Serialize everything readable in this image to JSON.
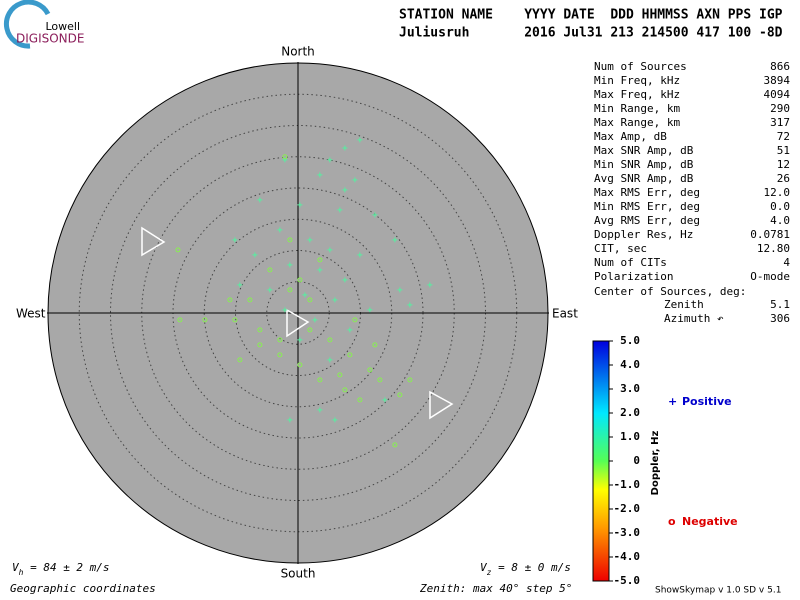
{
  "logo": {
    "top": "Lowell",
    "bottom": "DIGISONDE"
  },
  "header": {
    "line1": "STATION NAME    YYYY DATE  DDD HHMMSS AXN PPS IGP",
    "line2": "Juliusruh       2016 Jul31 213 214500 417 100 -8D"
  },
  "stats": {
    "rows": [
      [
        "Num of Sources",
        "866"
      ],
      [
        "Min Freq, kHz",
        "3894"
      ],
      [
        "Max Freq, kHz",
        "4094"
      ],
      [
        "Min Range, km",
        "290"
      ],
      [
        "Max Range, km",
        "317"
      ],
      [
        "Max Amp, dB",
        "72"
      ],
      [
        "Max SNR Amp, dB",
        "51"
      ],
      [
        "Min SNR Amp, dB",
        "12"
      ],
      [
        "Avg SNR Amp, dB",
        "26"
      ],
      [
        "Max RMS Err, deg",
        "12.0"
      ],
      [
        "Min RMS Err, deg",
        "0.0"
      ],
      [
        "Avg RMS Err, deg",
        "4.0"
      ],
      [
        "Doppler Res, Hz",
        "0.0781"
      ],
      [
        "CIT, sec",
        "12.80"
      ],
      [
        "Num of CITs",
        "4"
      ],
      [
        "Polarization",
        "O-mode"
      ]
    ],
    "center_title": "Center of Sources, deg:",
    "zenith_label": "Zenith",
    "zenith": "5.1",
    "azimuth_label": "Azimuth ↶",
    "azimuth": "306"
  },
  "colorbar": {
    "label": "Doppler, Hz",
    "lim": [
      -5,
      5
    ],
    "ticks": [
      {
        "value": 5,
        "label": "5.0"
      },
      {
        "value": 4,
        "label": "4.0"
      },
      {
        "value": 3,
        "label": "3.0"
      },
      {
        "value": 2,
        "label": "2.0"
      },
      {
        "value": 1,
        "label": "1.0"
      },
      0,
      {
        "value": -1,
        "label": "-1.0"
      },
      {
        "value": -2,
        "label": "-2.0"
      },
      {
        "value": -3,
        "label": "-3.0"
      },
      {
        "value": -4,
        "label": "-4.0"
      },
      {
        "value": -5,
        "label": "-5.0"
      }
    ]
  },
  "footer": {
    "vh": {
      "symbol": "V",
      "sub": "h",
      "text": " = 84 ± 2 m/s"
    },
    "vz": {
      "symbol": "V",
      "sub": "z",
      "text": " = 8 ± 0 m/s"
    },
    "coords": "Geographic coordinates",
    "zenith": "Zenith: max 40°  step 5°",
    "version": "ShowSkymap v 1.0   SD v 5.1"
  },
  "chart_data": {
    "type": "scatter",
    "directions": {
      "north": "North",
      "south": "South",
      "east": "East",
      "west": "West"
    },
    "rlim": [
      0,
      40
    ],
    "rticks": [
      5,
      10,
      15,
      20,
      25,
      30,
      35,
      40
    ],
    "series": [
      {
        "name": "Positive",
        "marker": "+",
        "legend_color": "#0000cc",
        "color": "#55f0a0",
        "x": [
          7.5,
          5.1,
          3.5,
          9.1,
          0.3,
          6.7,
          12.3,
          -2.9,
          1.9,
          5.1,
          9.9,
          -6.9,
          -1.3,
          3.5,
          7.5,
          16.3,
          21.1,
          -9.3,
          -4.5,
          1.1,
          5.9,
          11.5,
          17.9,
          -2.1,
          2.7,
          8.3,
          0.3,
          5.1,
          -1.3,
          3.5,
          5.9,
          13.9,
          9.9,
          -2.1,
          -6.1,
          -10.1,
          15.5,
          7.5
        ],
        "values": [
          26.4,
          24.5,
          22.1,
          21.3,
          17.3,
          16.5,
          15.7,
          13.3,
          11.7,
          10.1,
          9.3,
          9.3,
          7.7,
          6.9,
          5.3,
          3.7,
          4.5,
          4.5,
          3.7,
          2.9,
          2.1,
          0.5,
          1.3,
          0.5,
          -1.1,
          -2.7,
          -4.3,
          -7.5,
          -17.1,
          -15.5,
          -17.1,
          -13.9,
          27.7,
          24.5,
          18.1,
          11.7,
          11.7,
          19.7
        ]
      },
      {
        "name": "Negative",
        "marker": "o",
        "legend_color": "#dd0000",
        "color": "#88f050",
        "x": [
          -2.9,
          -6.1,
          -10.1,
          -14.9,
          -18.9,
          -7.7,
          1.9,
          5.1,
          8.3,
          11.5,
          13.1,
          16.3,
          17.9,
          15.5,
          7.5,
          3.5,
          0.3,
          -2.9,
          -6.1,
          -9.3,
          1.9,
          -1.3,
          0.3,
          -4.5,
          3.5,
          -1.3,
          -2.1,
          -19.2,
          -10.9,
          9.1,
          12.3,
          6.7,
          9.9
        ],
        "values": [
          -4.3,
          -2.7,
          -1.1,
          -1.1,
          -1.1,
          2.1,
          -2.7,
          -4.3,
          -6.7,
          -9.1,
          -10.7,
          -13.1,
          -10.7,
          -21.1,
          -12.3,
          -10.7,
          -8.3,
          -6.7,
          -5.1,
          -7.5,
          2.1,
          3.7,
          5.3,
          6.9,
          8.5,
          11.7,
          25,
          10.1,
          2.1,
          -1.1,
          -5.1,
          -9.9,
          -13.9
        ]
      }
    ]
  }
}
